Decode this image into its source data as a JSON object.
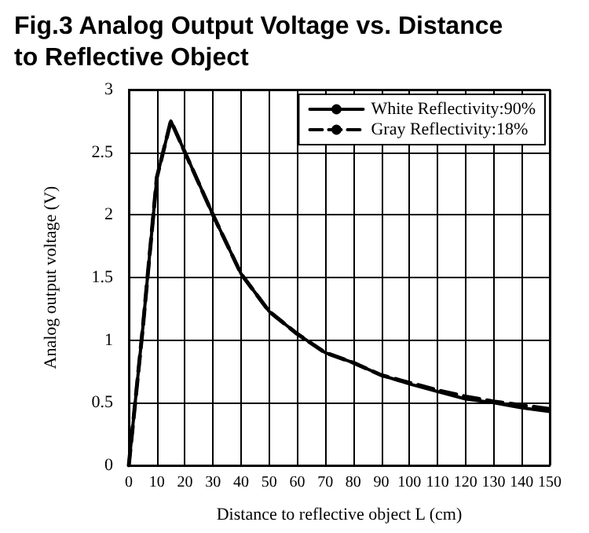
{
  "chart_data": {
    "type": "line",
    "title": "Fig.3 Analog Output Voltage vs. Distance to Reflective Object",
    "xlabel": "Distance to reflective object L (cm)",
    "ylabel": "Analog output voltage (V)",
    "x": [
      0,
      5,
      10,
      15,
      20,
      30,
      40,
      50,
      60,
      70,
      80,
      90,
      100,
      110,
      120,
      130,
      140,
      150
    ],
    "series": [
      {
        "name": "White Reflectivity:90%",
        "color": "#000000",
        "line_style": "solid",
        "values": [
          0,
          1.1,
          2.3,
          2.75,
          2.5,
          2.0,
          1.53,
          1.23,
          1.05,
          0.9,
          0.82,
          0.72,
          0.65,
          0.59,
          0.53,
          0.5,
          0.46,
          0.43
        ]
      },
      {
        "name": "Gray Reflectivity:18%",
        "color": "#000000",
        "line_style": "dashed",
        "values": [
          0,
          1.1,
          2.3,
          2.75,
          2.5,
          2.0,
          1.53,
          1.23,
          1.05,
          0.9,
          0.82,
          0.72,
          0.66,
          0.6,
          0.55,
          0.51,
          0.48,
          0.45
        ]
      }
    ],
    "xlim": [
      0,
      150
    ],
    "xticks": [
      0,
      10,
      20,
      30,
      40,
      50,
      60,
      70,
      80,
      90,
      100,
      110,
      120,
      130,
      140,
      150
    ],
    "ylim": [
      0,
      3
    ],
    "yticks": [
      0,
      0.5,
      1,
      1.5,
      2,
      2.5,
      3
    ],
    "grid": true,
    "legend": "top right",
    "marker": "none"
  }
}
